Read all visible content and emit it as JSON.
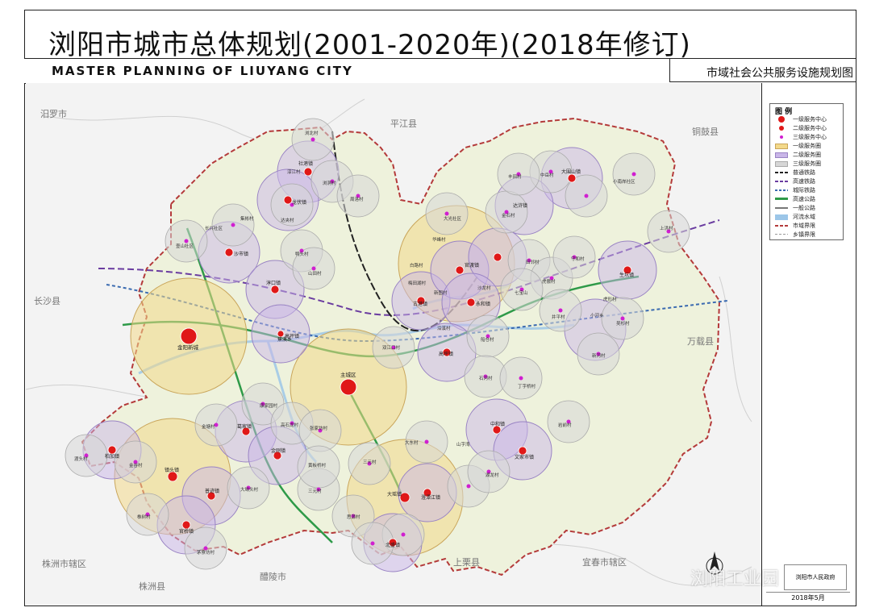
{
  "title": {
    "cn": "浏阳市城市总体规划(2001-2020年)(2018年修订)",
    "en": "MASTER PLANNING OF LIUYANG CITY",
    "subtitle": "市域社会公共服务设施规划图"
  },
  "legend": {
    "heading": "图 例",
    "items": [
      {
        "label": "一级服务中心",
        "color": "#e01818"
      },
      {
        "label": "二级服务中心",
        "color": "#e01818"
      },
      {
        "label": "三级服务中心",
        "color": "#d01fd0"
      },
      {
        "label": "一级服务圈",
        "color": "#f3d98a"
      },
      {
        "label": "二级服务圈",
        "color": "#c9b6e8"
      },
      {
        "label": "三级服务圈",
        "color": "#d7d7d7"
      },
      {
        "label": "普通铁路",
        "color": "#222222"
      },
      {
        "label": "高速铁路",
        "color": "#6a3ca0"
      },
      {
        "label": "城际铁路",
        "color": "#3a6ab0"
      },
      {
        "label": "高速公路",
        "color": "#2e9a48"
      },
      {
        "label": "一般公路",
        "color": "#777777"
      },
      {
        "label": "河流水域",
        "color": "#9cc6e8"
      },
      {
        "label": "市域界限",
        "color": "#b43a3a"
      },
      {
        "label": "乡镇界限",
        "color": "#999999"
      }
    ]
  },
  "neighbors": [
    "汨罗市",
    "平江县",
    "铜鼓县",
    "长沙县",
    "万载县",
    "株洲市辖区",
    "株洲县",
    "醴陵市",
    "上栗县",
    "宜春市辖区"
  ],
  "places": {
    "primary": [
      "主城区",
      "金阳新城"
    ],
    "secondary": [
      "社港镇",
      "龙伏镇",
      "沙市镇",
      "淳口镇",
      "高坪镇",
      "大围山镇",
      "达浒镇",
      "古港镇",
      "官渡镇",
      "永和镇",
      "生坑镇",
      "高坪镇",
      "蕉溪乡",
      "葛家镇",
      "柏加镇",
      "镇头镇",
      "普迹镇",
      "官桥镇",
      "中和镇",
      "文家市镇",
      "大瑶镇",
      "澄潭江镇",
      "金刚镇",
      "北盛镇"
    ],
    "tertiary": [
      "浏北村",
      "淳江村",
      "浏洞村",
      "达夹村",
      "周洛村",
      "集彬村",
      "长兴社区",
      "壹山社区",
      "沙市镇",
      "鸭头村",
      "山田村",
      "大光社区",
      "金石村",
      "中岳村",
      "丰田村",
      "小河乡",
      "小南岸社区",
      "上洪村",
      "白路村",
      "华峰村",
      "梅田湖村",
      "新图村",
      "杨梅村",
      "沙龙村",
      "田邻村",
      "七宝山",
      "虎形村",
      "守和村",
      "虎傲村",
      "井平村",
      "小河乡",
      "吴杉村",
      "新河村",
      "沿溪村",
      "高坪镇",
      "船仓村",
      "石河村",
      "双江口村",
      "丁字桥村",
      "康家园村",
      "高石龙村",
      "张家坊村",
      "金塘村",
      "双狮村",
      "三元村",
      "大东村",
      "山字湾",
      "湖龙村",
      "大坳头村",
      "三元村",
      "思源村",
      "黄板桥村",
      "金沙村",
      "太平桥村",
      "星星村",
      "金响村",
      "茅寮坊村",
      "中和村",
      "岩前村",
      "双狮村",
      "普中村",
      "新乐村",
      "乾柏村",
      "葛家山村",
      "渡头村",
      "金谷村",
      "跃龙村",
      "株树村",
      "土桥村",
      "金福村"
    ]
  },
  "footer": {
    "credit": "浏阳市人民政府",
    "date": "2018年5月",
    "watermark": "浏阳工业园"
  }
}
